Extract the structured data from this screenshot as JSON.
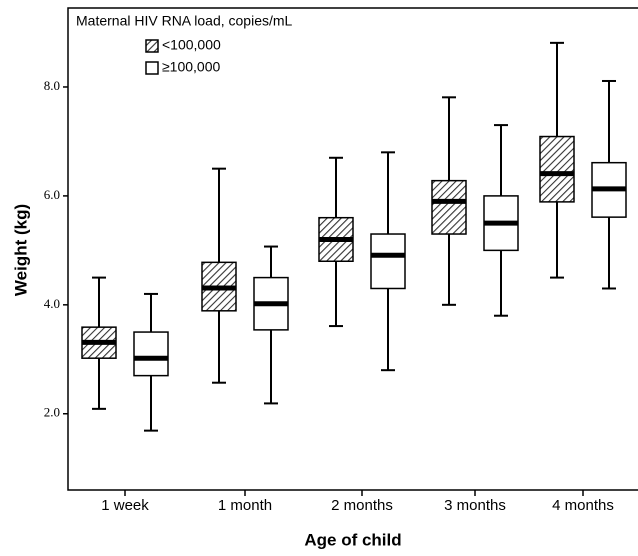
{
  "chart_data": {
    "type": "box",
    "legend_title": "Maternal HIV RNA load, copies/mL",
    "x_label": "Age of child",
    "y_label": "Weight (kg)",
    "categories": [
      "1 week",
      "1 month",
      "2 months",
      "3 months",
      "4 months"
    ],
    "ylim": [
      0.6,
      9.45
    ],
    "yticks": [
      {
        "value": 2,
        "label": "2.0"
      },
      {
        "value": 4,
        "label": "4.0"
      },
      {
        "value": 6,
        "label": "6.0"
      },
      {
        "value": 8,
        "label": "8.0"
      }
    ],
    "series": [
      {
        "name": "<100,000",
        "hatched": true,
        "min": [
          2.09,
          2.57,
          3.61,
          4.0,
          4.5
        ],
        "q1": [
          3.02,
          3.89,
          4.8,
          5.3,
          5.89
        ],
        "median": [
          3.31,
          4.31,
          5.2,
          5.9,
          6.41
        ],
        "q3": [
          3.59,
          4.78,
          5.6,
          6.28,
          7.09
        ],
        "max": [
          4.5,
          6.5,
          6.7,
          7.81,
          8.81
        ]
      },
      {
        "name": "≥100,000",
        "hatched": false,
        "min": [
          1.69,
          2.19,
          2.8,
          3.8,
          4.3
        ],
        "q1": [
          2.7,
          3.54,
          4.3,
          5.0,
          5.61
        ],
        "median": [
          3.02,
          4.02,
          4.91,
          5.5,
          6.13
        ],
        "q3": [
          3.5,
          4.5,
          5.3,
          6.0,
          6.61
        ],
        "max": [
          4.2,
          5.07,
          6.8,
          7.3,
          8.11
        ]
      }
    ]
  }
}
